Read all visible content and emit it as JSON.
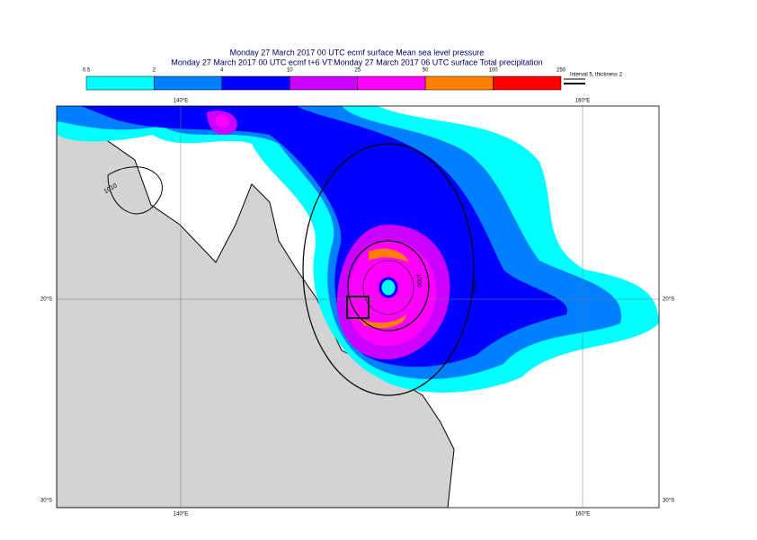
{
  "header": {
    "line1": "Monday 27 March 2017 00 UTC ecmf surface  Mean sea level pressure",
    "line2": "Monday 27 March 2017 00 UTC ecmf t+6 VT:Monday 27 March 2017 06 UTC surface  Total precipitation"
  },
  "legend": {
    "ticks": [
      0.5,
      2,
      4,
      10,
      25,
      50,
      100,
      250
    ],
    "colors": [
      "#00ffff",
      "#0080ff",
      "#0000ff",
      "#cc00ff",
      "#ff00ff",
      "#ff8000",
      "#ff0000"
    ],
    "note": "Interval 5, thickness 2"
  },
  "map": {
    "lon_labels": [
      "140°E",
      "160°E"
    ],
    "lat_labels": [
      "20°S",
      "30°S"
    ],
    "contour_labels": [
      "1010",
      "1010",
      "1000"
    ]
  }
}
